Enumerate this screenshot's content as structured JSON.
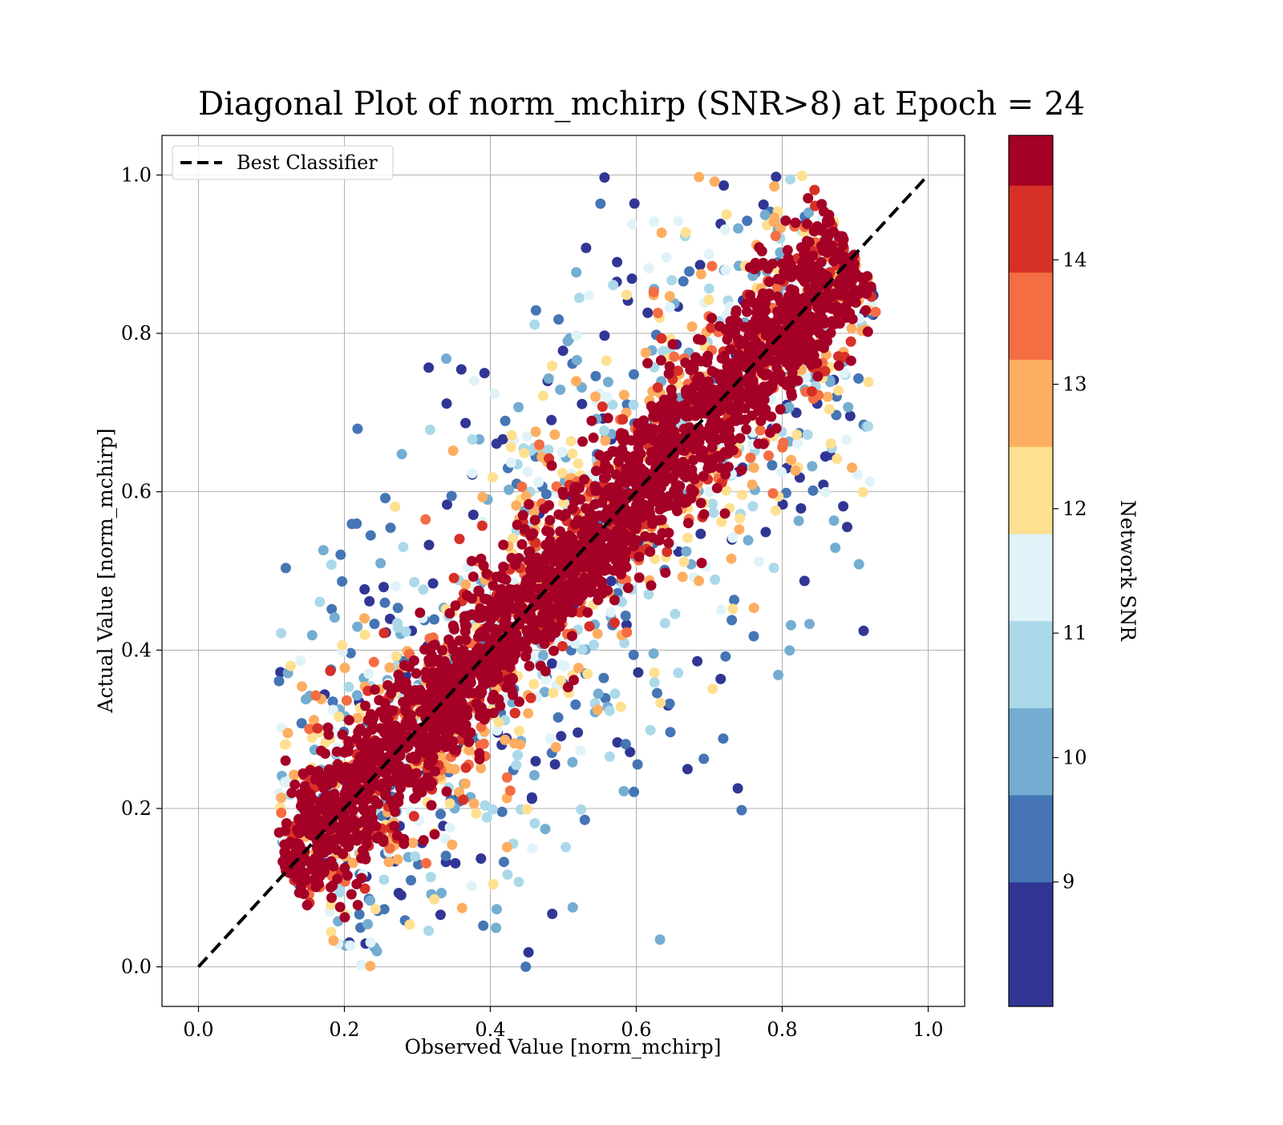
{
  "chart_data": {
    "type": "scatter",
    "title": "Diagonal Plot of norm_mchirp (SNR>8) at Epoch = 24",
    "xlabel": "Observed Value [norm_mchirp]",
    "ylabel": "Actual Value [norm_mchirp]",
    "xlim": [
      -0.05,
      1.05
    ],
    "ylim": [
      -0.05,
      1.05
    ],
    "x_ticks": [
      0.0,
      0.2,
      0.4,
      0.6,
      0.8,
      1.0
    ],
    "y_ticks": [
      0.0,
      0.2,
      0.4,
      0.6,
      0.8,
      1.0
    ],
    "x_tick_labels": [
      "0.0",
      "0.2",
      "0.4",
      "0.6",
      "0.8",
      "1.0"
    ],
    "y_tick_labels": [
      "0.0",
      "0.2",
      "0.4",
      "0.6",
      "0.8",
      "1.0"
    ],
    "grid": true,
    "legend": {
      "placement": "upper left",
      "entries": [
        {
          "label": "Best Classifier",
          "style": "dashed",
          "color": "#000000"
        }
      ]
    },
    "reference_line": {
      "label": "Best Classifier",
      "x": [
        0.0,
        1.0
      ],
      "y": [
        0.0,
        1.0
      ],
      "style": "dashed",
      "color": "#000000"
    },
    "scatter_description": "Dense band of points along the diagonal, roughly x in [0.11, 0.92] and y in [0.0, 1.0], colored by Network SNR; higher SNR points cluster closest to the diagonal, lower SNR points scatter further away.",
    "colorbar": {
      "label": "Network SNR",
      "range": [
        8,
        15
      ],
      "levels": [
        8,
        9,
        9.7,
        10.4,
        11.1,
        11.8,
        12.5,
        13.2,
        13.9,
        14.6,
        15
      ],
      "ticks": [
        9,
        10,
        11,
        12,
        13,
        14
      ],
      "tick_labels": [
        "9",
        "10",
        "11",
        "12",
        "13",
        "14"
      ],
      "colors": [
        "#313695",
        "#4575b4",
        "#74add1",
        "#abd9e9",
        "#e0f3f8",
        "#fee090",
        "#fdae61",
        "#f46d43",
        "#d73027",
        "#a50026"
      ]
    }
  }
}
